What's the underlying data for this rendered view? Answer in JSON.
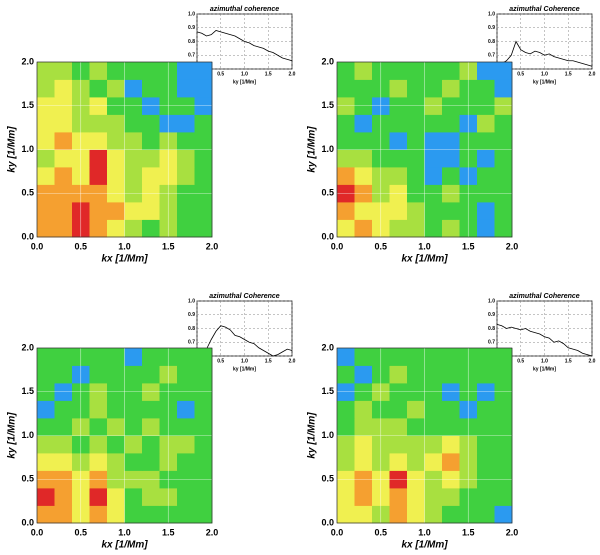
{
  "chart_data": [
    {
      "type": "heatmap",
      "xlabel": "kx [1/Mm]",
      "ylabel": "ky [1/Mm]",
      "xlim": [
        0,
        2
      ],
      "ylim": [
        0,
        2
      ],
      "xticks": [
        {
          "value": 0,
          "label": "0.0"
        },
        0.5,
        {
          "value": 1,
          "label": "1.0"
        },
        1.5,
        {
          "value": 2,
          "label": "2.0"
        }
      ],
      "yticks": [
        {
          "value": 0,
          "label": "0.0"
        },
        0.5,
        {
          "value": 1,
          "label": "1.0"
        },
        1.5,
        {
          "value": 2,
          "label": "2.0"
        }
      ],
      "grid": true,
      "colors": [
        "#2b9af0",
        "#40d040",
        "#a8e040",
        "#f0f050",
        "#f5a030",
        "#e02828"
      ],
      "z": [
        [
          4,
          4,
          5,
          4,
          3,
          2,
          1,
          2,
          1,
          1
        ],
        [
          4,
          4,
          5,
          4,
          4,
          3,
          3,
          2,
          1,
          1
        ],
        [
          4,
          4,
          4,
          4,
          3,
          2,
          3,
          2,
          1,
          1
        ],
        [
          3,
          4,
          3,
          5,
          3,
          2,
          3,
          3,
          2,
          1
        ],
        [
          2,
          3,
          3,
          5,
          3,
          2,
          2,
          3,
          2,
          1
        ],
        [
          3,
          4,
          3,
          3,
          2,
          2,
          1,
          2,
          1,
          1
        ],
        [
          3,
          3,
          2,
          2,
          2,
          1,
          1,
          0,
          0,
          1
        ],
        [
          3,
          3,
          2,
          3,
          1,
          1,
          0,
          1,
          1,
          0
        ],
        [
          2,
          3,
          2,
          1,
          2,
          0,
          1,
          1,
          0,
          0
        ],
        [
          2,
          2,
          1,
          2,
          1,
          1,
          1,
          1,
          0,
          0
        ]
      ]
    },
    {
      "type": "line",
      "title": "azimuthal coherence",
      "xlabel": "ky [1/Mm]",
      "xlim": [
        0,
        2
      ],
      "ylim": [
        0.6,
        1
      ],
      "xticks": [
        {
          "value": 0,
          "label": "0.0"
        },
        0.5,
        {
          "value": 1,
          "label": "1.0"
        },
        1.5,
        {
          "value": 2,
          "label": "2.0"
        }
      ],
      "yticks": [
        0.6,
        0.7,
        0.8,
        0.9,
        {
          "value": 1,
          "label": "1.0"
        }
      ],
      "grid": true,
      "color": "#000000",
      "x": [
        0,
        0.1,
        0.2,
        0.3,
        0.4,
        0.5,
        0.6,
        0.7,
        0.8,
        0.9,
        1,
        1.1,
        1.2,
        1.3,
        1.4,
        1.5,
        1.6,
        1.7,
        1.8,
        1.9,
        2
      ],
      "values": [
        0.87,
        0.86,
        0.84,
        0.85,
        0.88,
        0.87,
        0.86,
        0.85,
        0.84,
        0.82,
        0.8,
        0.79,
        0.77,
        0.76,
        0.75,
        0.73,
        0.72,
        0.7,
        0.68,
        0.67,
        0.66
      ]
    },
    {
      "type": "heatmap",
      "xlabel": "kx [1/Mm]",
      "ylabel": "ky [1/Mm]",
      "xlim": [
        0,
        2
      ],
      "ylim": [
        0,
        2
      ],
      "xticks": [
        {
          "value": 0,
          "label": "0.0"
        },
        0.5,
        {
          "value": 1,
          "label": "1.0"
        },
        1.5,
        {
          "value": 2,
          "label": "2.0"
        }
      ],
      "yticks": [
        {
          "value": 0,
          "label": "0.0"
        },
        0.5,
        {
          "value": 1,
          "label": "1.0"
        },
        1.5,
        {
          "value": 2,
          "label": "2.0"
        }
      ],
      "grid": true,
      "colors": [
        "#2b9af0",
        "#40d040",
        "#a8e040",
        "#f0f050",
        "#f5a030",
        "#e02828"
      ],
      "z": [
        [
          3,
          4,
          3,
          2,
          2,
          1,
          2,
          1,
          0,
          1
        ],
        [
          4,
          3,
          3,
          3,
          2,
          1,
          1,
          1,
          0,
          1
        ],
        [
          5,
          4,
          2,
          3,
          1,
          1,
          2,
          1,
          1,
          1
        ],
        [
          4,
          3,
          2,
          2,
          1,
          0,
          1,
          0,
          1,
          1
        ],
        [
          2,
          2,
          1,
          1,
          1,
          0,
          0,
          1,
          0,
          1
        ],
        [
          1,
          1,
          1,
          0,
          1,
          0,
          0,
          1,
          1,
          1
        ],
        [
          1,
          0,
          1,
          1,
          1,
          1,
          1,
          0,
          2,
          1
        ],
        [
          2,
          1,
          0,
          1,
          1,
          2,
          1,
          1,
          1,
          2
        ],
        [
          1,
          1,
          1,
          2,
          1,
          1,
          2,
          1,
          1,
          0
        ],
        [
          1,
          2,
          1,
          1,
          1,
          1,
          1,
          2,
          0,
          0
        ]
      ]
    },
    {
      "type": "line",
      "title": "azimuthal Coherence",
      "xlabel": "ky [1/Mm]",
      "xlim": [
        0,
        2
      ],
      "ylim": [
        0.6,
        1
      ],
      "xticks": [
        {
          "value": 0,
          "label": "0.0"
        },
        0.5,
        {
          "value": 1,
          "label": "1.0"
        },
        1.5,
        {
          "value": 2,
          "label": "2.0"
        }
      ],
      "yticks": [
        0.6,
        0.7,
        0.8,
        0.9,
        {
          "value": 1,
          "label": "1.0"
        }
      ],
      "grid": true,
      "color": "#000000",
      "x": [
        0,
        0.1,
        0.2,
        0.3,
        0.4,
        0.5,
        0.6,
        0.7,
        0.8,
        0.9,
        1,
        1.1,
        1.2,
        1.3,
        1.4,
        1.5,
        1.6,
        1.7,
        1.8,
        1.9,
        2
      ],
      "values": [
        0.62,
        0.64,
        0.66,
        0.7,
        0.8,
        0.74,
        0.72,
        0.71,
        0.73,
        0.72,
        0.7,
        0.71,
        0.69,
        0.68,
        0.67,
        0.66,
        0.66,
        0.65,
        0.64,
        0.63,
        0.62
      ]
    },
    {
      "type": "heatmap",
      "xlabel": "kx [1/Mm]",
      "ylabel": "ky [1/Mm]",
      "xlim": [
        0,
        2
      ],
      "ylim": [
        0,
        2
      ],
      "xticks": [
        {
          "value": 0,
          "label": "0.0"
        },
        0.5,
        {
          "value": 1,
          "label": "1.0"
        },
        1.5,
        {
          "value": 2,
          "label": "2.0"
        }
      ],
      "yticks": [
        {
          "value": 0,
          "label": "0.0"
        },
        0.5,
        {
          "value": 1,
          "label": "1.0"
        },
        1.5,
        {
          "value": 2,
          "label": "2.0"
        }
      ],
      "grid": true,
      "colors": [
        "#2b9af0",
        "#40d040",
        "#a8e040",
        "#f0f050",
        "#f5a030",
        "#e02828"
      ],
      "z": [
        [
          4,
          4,
          3,
          4,
          3,
          1,
          1,
          1,
          1,
          1
        ],
        [
          5,
          4,
          3,
          5,
          3,
          1,
          2,
          2,
          1,
          1
        ],
        [
          4,
          4,
          3,
          4,
          2,
          2,
          2,
          1,
          1,
          1
        ],
        [
          3,
          3,
          2,
          3,
          2,
          1,
          1,
          2,
          1,
          1
        ],
        [
          2,
          2,
          1,
          2,
          1,
          2,
          1,
          2,
          2,
          1
        ],
        [
          1,
          1,
          2,
          1,
          2,
          1,
          2,
          1,
          1,
          1
        ],
        [
          0,
          1,
          1,
          2,
          1,
          1,
          1,
          1,
          0,
          1
        ],
        [
          1,
          0,
          1,
          2,
          1,
          1,
          2,
          1,
          1,
          1
        ],
        [
          1,
          1,
          0,
          1,
          1,
          1,
          1,
          2,
          1,
          1
        ],
        [
          1,
          1,
          1,
          1,
          1,
          0,
          1,
          1,
          1,
          1
        ]
      ]
    },
    {
      "type": "line",
      "title": "azimuthal Coherence",
      "xlabel": "ky [1/Mm]",
      "xlim": [
        0,
        2
      ],
      "ylim": [
        0.6,
        1
      ],
      "xticks": [
        {
          "value": 0,
          "label": "0.0"
        },
        0.5,
        {
          "value": 1,
          "label": "1.0"
        },
        1.5,
        {
          "value": 2,
          "label": "2.0"
        }
      ],
      "yticks": [
        0.6,
        0.7,
        0.8,
        0.9,
        {
          "value": 1,
          "label": "1.0"
        }
      ],
      "grid": true,
      "color": "#000000",
      "x": [
        0,
        0.1,
        0.2,
        0.3,
        0.4,
        0.5,
        0.6,
        0.7,
        0.8,
        0.9,
        1,
        1.1,
        1.2,
        1.3,
        1.4,
        1.5,
        1.6,
        1.7,
        1.8,
        1.9,
        2
      ],
      "values": [
        0.6,
        0.62,
        0.65,
        0.72,
        0.78,
        0.82,
        0.81,
        0.79,
        0.75,
        0.74,
        0.72,
        0.7,
        0.69,
        0.66,
        0.64,
        0.62,
        0.6,
        0.61,
        0.63,
        0.65,
        0.64
      ]
    },
    {
      "type": "heatmap",
      "xlabel": "kx [1/Mm]",
      "ylabel": "ky [1/Mm]",
      "xlim": [
        0,
        2
      ],
      "ylim": [
        0,
        2
      ],
      "xticks": [
        {
          "value": 0,
          "label": "0.0"
        },
        0.5,
        {
          "value": 1,
          "label": "1.0"
        },
        1.5,
        {
          "value": 2,
          "label": "2.0"
        }
      ],
      "yticks": [
        {
          "value": 0,
          "label": "0.0"
        },
        0.5,
        {
          "value": 1,
          "label": "1.0"
        },
        1.5,
        {
          "value": 2,
          "label": "2.0"
        }
      ],
      "grid": true,
      "colors": [
        "#2b9af0",
        "#40d040",
        "#a8e040",
        "#f0f050",
        "#f5a030",
        "#e02828"
      ],
      "z": [
        [
          3,
          3,
          2,
          4,
          3,
          2,
          1,
          1,
          1,
          0
        ],
        [
          3,
          4,
          3,
          4,
          3,
          2,
          2,
          1,
          1,
          1
        ],
        [
          3,
          4,
          3,
          5,
          3,
          2,
          3,
          2,
          1,
          1
        ],
        [
          2,
          3,
          2,
          3,
          2,
          3,
          4,
          2,
          1,
          1
        ],
        [
          2,
          3,
          2,
          2,
          2,
          2,
          3,
          2,
          1,
          1
        ],
        [
          1,
          2,
          2,
          2,
          1,
          1,
          1,
          1,
          1,
          1
        ],
        [
          1,
          2,
          1,
          1,
          2,
          1,
          1,
          0,
          1,
          1
        ],
        [
          0,
          1,
          2,
          1,
          1,
          1,
          0,
          1,
          0,
          1
        ],
        [
          1,
          0,
          1,
          2,
          1,
          1,
          1,
          1,
          1,
          1
        ],
        [
          0,
          1,
          1,
          1,
          1,
          1,
          1,
          1,
          1,
          1
        ]
      ]
    },
    {
      "type": "line",
      "title": "azimuthal Coherence",
      "xlabel": "ky [1/Mm]",
      "xlim": [
        0,
        2
      ],
      "ylim": [
        0.6,
        1
      ],
      "xticks": [
        {
          "value": 0,
          "label": "0.0"
        },
        0.5,
        {
          "value": 1,
          "label": "1.0"
        },
        1.5,
        {
          "value": 2,
          "label": "2.0"
        }
      ],
      "yticks": [
        0.6,
        0.7,
        0.8,
        0.9,
        {
          "value": 1,
          "label": "1.0"
        }
      ],
      "grid": true,
      "color": "#000000",
      "x": [
        0,
        0.1,
        0.2,
        0.3,
        0.4,
        0.5,
        0.6,
        0.7,
        0.8,
        0.9,
        1,
        1.1,
        1.2,
        1.3,
        1.4,
        1.5,
        1.6,
        1.7,
        1.8,
        1.9,
        2
      ],
      "values": [
        0.83,
        0.82,
        0.8,
        0.81,
        0.8,
        0.79,
        0.8,
        0.78,
        0.77,
        0.76,
        0.74,
        0.73,
        0.7,
        0.71,
        0.69,
        0.66,
        0.65,
        0.64,
        0.62,
        0.61,
        0.6
      ]
    }
  ]
}
